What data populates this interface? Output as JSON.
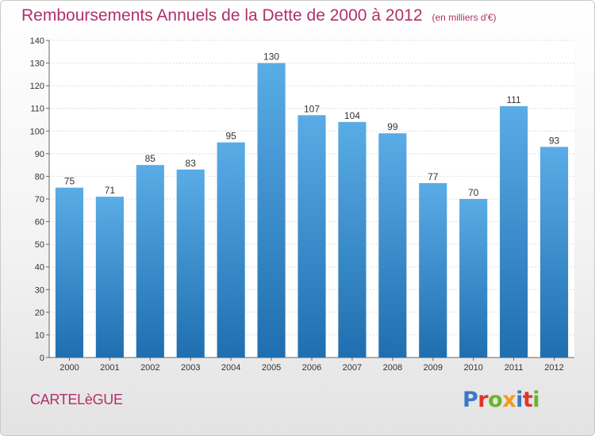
{
  "header": {
    "title": "Remboursements Annuels de la Dette de 2000 à 2012",
    "unit_note": "(en milliers d'€)"
  },
  "footer": {
    "commune": "CARTELèGUE",
    "logo_text": "Proxiti",
    "logo_colors": [
      "#3a78c8",
      "#e2352a",
      "#6bb42a",
      "#f39a1b",
      "#3a78c8",
      "#e2352a",
      "#6bb42a"
    ]
  },
  "colors": {
    "bar_top": "#5aace6",
    "bar_bottom": "#1f6fb0",
    "title": "#b0306a"
  },
  "chart_data": {
    "type": "bar",
    "title": "Remboursements Annuels de la Dette de 2000 à 2012",
    "xlabel": "",
    "ylabel": "",
    "categories": [
      "2000",
      "2001",
      "2002",
      "2003",
      "2004",
      "2005",
      "2006",
      "2007",
      "2008",
      "2009",
      "2010",
      "2011",
      "2012"
    ],
    "values": [
      75,
      71,
      85,
      83,
      95,
      130,
      107,
      104,
      99,
      77,
      70,
      111,
      93
    ],
    "ylim": [
      0,
      140
    ],
    "yticks": [
      0,
      10,
      20,
      30,
      40,
      50,
      60,
      70,
      80,
      90,
      100,
      110,
      120,
      130,
      140
    ],
    "grid": true,
    "legend": "none"
  }
}
